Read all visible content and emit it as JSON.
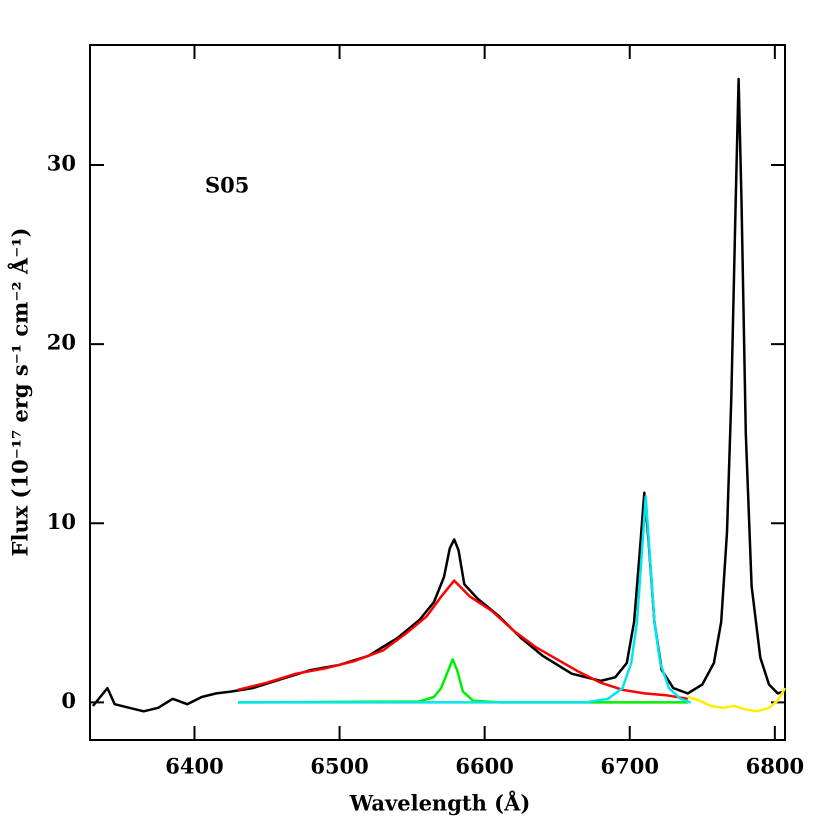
{
  "chart_data": {
    "type": "line",
    "xlabel": "Wavelength (Å)",
    "ylabel": "Flux (10⁻¹⁷ erg s⁻¹ cm⁻² Å⁻¹)",
    "annotation": "S05",
    "xlim": [
      6328,
      6807
    ],
    "ylim": [
      -2.1,
      36.7
    ],
    "xticks": [
      6400,
      6500,
      6600,
      6700,
      6800
    ],
    "yticks": [
      0,
      10,
      20,
      30
    ],
    "series": [
      {
        "color": "#000000",
        "x": [
          6330,
          6340,
          6345,
          6355,
          6365,
          6375,
          6385,
          6395,
          6405,
          6415,
          6425,
          6440,
          6460,
          6480,
          6500,
          6520,
          6540,
          6555,
          6565,
          6572,
          6576,
          6579,
          6582,
          6586,
          6595,
          6610,
          6625,
          6640,
          6660,
          6680,
          6690,
          6698,
          6703,
          6707,
          6710,
          6713,
          6717,
          6722,
          6730,
          6740,
          6750,
          6758,
          6763,
          6767,
          6770,
          6773,
          6775,
          6777,
          6780,
          6784,
          6790,
          6796,
          6802,
          6806
        ],
        "values": [
          -0.2,
          0.8,
          -0.1,
          -0.3,
          -0.5,
          -0.3,
          0.2,
          -0.1,
          0.3,
          0.5,
          0.6,
          0.8,
          1.3,
          1.8,
          2.1,
          2.6,
          3.6,
          4.6,
          5.6,
          7.0,
          8.6,
          9.1,
          8.5,
          6.6,
          5.8,
          4.8,
          3.6,
          2.6,
          1.6,
          1.2,
          1.4,
          2.2,
          4.5,
          8.5,
          11.7,
          9.0,
          4.5,
          1.8,
          0.8,
          0.5,
          1.0,
          2.2,
          4.5,
          9.5,
          17,
          28,
          34.8,
          28,
          15,
          6.5,
          2.5,
          1.0,
          0.5,
          0.6
        ]
      },
      {
        "color": "#ff0000",
        "x": [
          6430,
          6450,
          6470,
          6490,
          6510,
          6530,
          6545,
          6560,
          6570,
          6579,
          6590,
          6605,
          6620,
          6635,
          6650,
          6665,
          6680,
          6695,
          6710,
          6725,
          6740
        ],
        "values": [
          0.7,
          1.1,
          1.6,
          1.9,
          2.3,
          2.9,
          3.8,
          4.8,
          5.9,
          6.8,
          5.9,
          5.1,
          4.0,
          3.1,
          2.4,
          1.7,
          1.1,
          0.7,
          0.5,
          0.4,
          0.2
        ]
      },
      {
        "color": "#00ee00",
        "x": [
          6430,
          6555,
          6565,
          6570,
          6574,
          6578,
          6581,
          6585,
          6592,
          6610,
          6740
        ],
        "values": [
          0,
          0.05,
          0.3,
          0.8,
          1.6,
          2.4,
          1.8,
          0.6,
          0.1,
          0,
          0
        ]
      },
      {
        "color": "#00e5ee",
        "x": [
          6430,
          6670,
          6685,
          6695,
          6701,
          6705,
          6708,
          6711,
          6714,
          6717,
          6721,
          6727,
          6735,
          6742
        ],
        "values": [
          0,
          0,
          0.2,
          0.8,
          2.2,
          4.5,
          8,
          11.5,
          8,
          4.5,
          2.2,
          0.8,
          0.2,
          0
        ]
      },
      {
        "color": "#ffee00",
        "x": [
          6740,
          6748,
          6756,
          6764,
          6772,
          6780,
          6788,
          6796,
          6802,
          6807
        ],
        "values": [
          0.3,
          0.1,
          -0.2,
          -0.3,
          -0.2,
          -0.4,
          -0.5,
          -0.3,
          0.1,
          0.8
        ]
      }
    ]
  }
}
